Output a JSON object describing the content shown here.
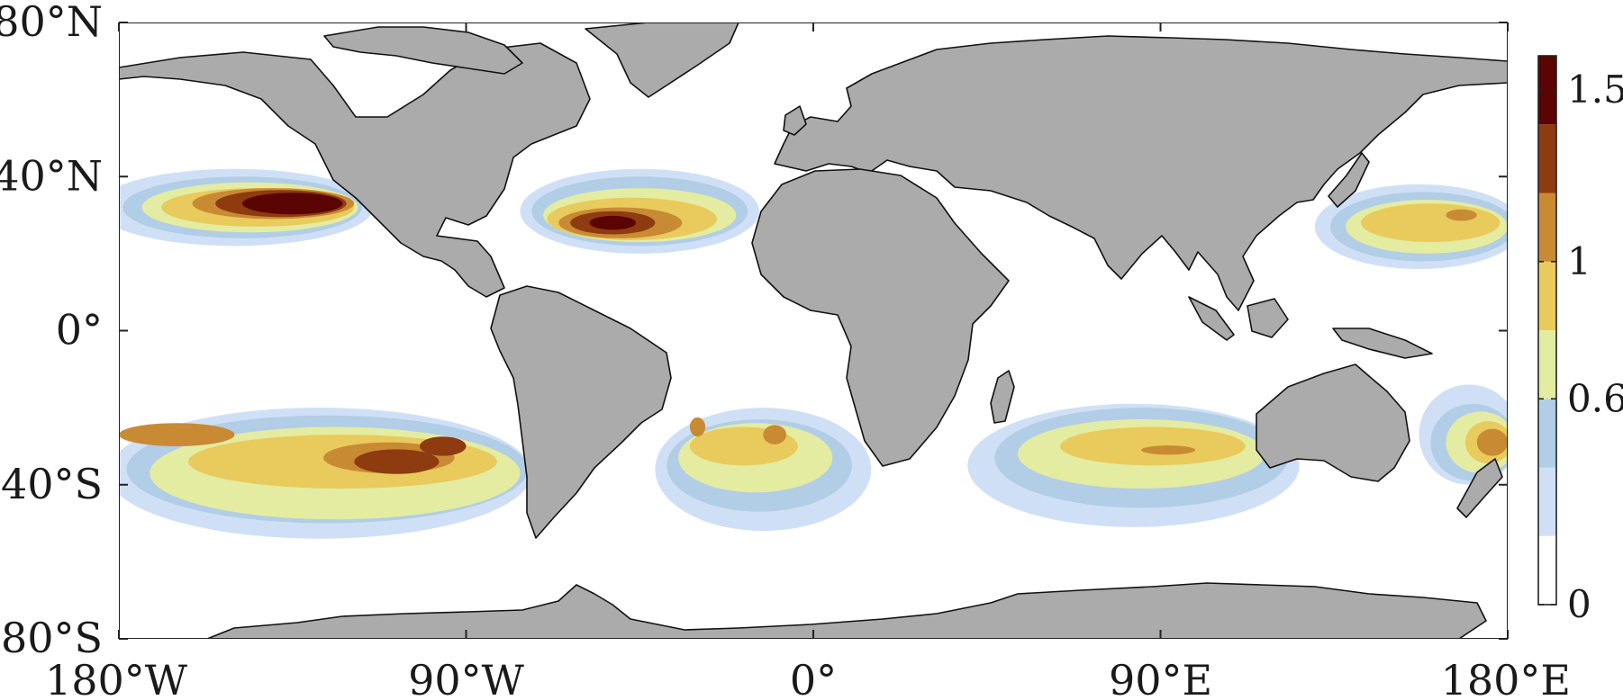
{
  "map": {
    "projection": "equirectangular",
    "lon_range": [
      -180,
      180
    ],
    "lat_range": [
      -80,
      80
    ],
    "land_color": "#ababab",
    "coastline_color": "#111111",
    "x_ticks": [
      {
        "lon": -180,
        "label": "180°W"
      },
      {
        "lon": -90,
        "label": "90°W"
      },
      {
        "lon": 0,
        "label": "0°"
      },
      {
        "lon": 90,
        "label": "90°E"
      },
      {
        "lon": 180,
        "label": "180°E"
      }
    ],
    "y_ticks": [
      {
        "lat": 80,
        "label": "80°N"
      },
      {
        "lat": 40,
        "label": "40°N"
      },
      {
        "lat": 0,
        "label": "0°"
      },
      {
        "lat": -40,
        "label": "40°S"
      },
      {
        "lat": -80,
        "label": "80°S"
      }
    ]
  },
  "colorbar": {
    "range": [
      0,
      1.6
    ],
    "levels": [
      {
        "from": 0.0,
        "to": 0.2,
        "color": "#ffffff"
      },
      {
        "from": 0.2,
        "to": 0.4,
        "color": "#cfe0f6"
      },
      {
        "from": 0.4,
        "to": 0.6,
        "color": "#b2cde6"
      },
      {
        "from": 0.6,
        "to": 0.8,
        "color": "#e4eca1"
      },
      {
        "from": 0.8,
        "to": 1.0,
        "color": "#e8cb5c"
      },
      {
        "from": 1.0,
        "to": 1.2,
        "color": "#c98a34"
      },
      {
        "from": 1.2,
        "to": 1.4,
        "color": "#8e3b10"
      },
      {
        "from": 1.4,
        "to": 1.6,
        "color": "#5a0404"
      }
    ],
    "ticks": [
      {
        "value": 0,
        "label": "0"
      },
      {
        "value": 0.6,
        "label": "0.6"
      },
      {
        "value": 1,
        "label": "1"
      },
      {
        "value": 1.5,
        "label": "1.5"
      }
    ]
  },
  "field_regions": [
    {
      "name": "north-pacific",
      "blobs": [
        {
          "lon": -150,
          "lat": 32,
          "rlon": 36,
          "rlat": 10,
          "level": 0.25
        },
        {
          "lon": -148,
          "lat": 32,
          "rlon": 31,
          "rlat": 8,
          "level": 0.5
        },
        {
          "lon": -146,
          "lat": 32,
          "rlon": 28,
          "rlat": 6.5,
          "level": 0.7
        },
        {
          "lon": -144,
          "lat": 32,
          "rlon": 25,
          "rlat": 5,
          "level": 0.9
        },
        {
          "lon": -140,
          "lat": 33,
          "rlon": 21,
          "rlat": 4,
          "level": 1.1
        },
        {
          "lon": -138,
          "lat": 33,
          "rlon": 17,
          "rlat": 3.5,
          "level": 1.3
        },
        {
          "lon": -135,
          "lat": 33,
          "rlon": 13,
          "rlat": 2.8,
          "level": 1.5
        }
      ]
    },
    {
      "name": "north-atlantic",
      "blobs": [
        {
          "lon": -45,
          "lat": 31,
          "rlon": 31,
          "rlat": 11,
          "level": 0.25
        },
        {
          "lon": -45,
          "lat": 31,
          "rlon": 28,
          "rlat": 9,
          "level": 0.5
        },
        {
          "lon": -45,
          "lat": 30,
          "rlon": 25,
          "rlat": 7,
          "level": 0.7
        },
        {
          "lon": -47,
          "lat": 29,
          "rlon": 22,
          "rlat": 5.5,
          "level": 0.9
        },
        {
          "lon": -50,
          "lat": 28,
          "rlon": 16,
          "rlat": 4,
          "level": 1.1
        },
        {
          "lon": -52,
          "lat": 28,
          "rlon": 11,
          "rlat": 3,
          "level": 1.3
        },
        {
          "lon": -52,
          "lat": 28,
          "rlon": 6,
          "rlat": 1.8,
          "level": 1.5
        }
      ]
    },
    {
      "name": "northwest-pacific",
      "blobs": [
        {
          "lon": 157,
          "lat": 27,
          "rlon": 27,
          "rlat": 11,
          "level": 0.25
        },
        {
          "lon": 158,
          "lat": 27,
          "rlon": 24,
          "rlat": 9,
          "level": 0.5
        },
        {
          "lon": 159,
          "lat": 27,
          "rlon": 21,
          "rlat": 7,
          "level": 0.7
        },
        {
          "lon": 160,
          "lat": 28,
          "rlon": 18,
          "rlat": 5,
          "level": 0.9
        },
        {
          "lon": 168,
          "lat": 30,
          "rlon": 4,
          "rlat": 1.5,
          "level": 1.1
        }
      ]
    },
    {
      "name": "south-pacific",
      "blobs": [
        {
          "lon": -128,
          "lat": -37,
          "rlon": 55,
          "rlat": 17,
          "level": 0.25
        },
        {
          "lon": -126,
          "lat": -36,
          "rlon": 52,
          "rlat": 14,
          "level": 0.5
        },
        {
          "lon": -124,
          "lat": -37,
          "rlon": 48,
          "rlat": 12,
          "level": 0.7
        },
        {
          "lon": -122,
          "lat": -34,
          "rlon": 40,
          "rlat": 7,
          "level": 0.9
        },
        {
          "lon": -165,
          "lat": -27,
          "rlon": 15,
          "rlat": 3,
          "level": 1.1
        },
        {
          "lon": -110,
          "lat": -33,
          "rlon": 17,
          "rlat": 4,
          "level": 1.1
        },
        {
          "lon": -108,
          "lat": -34,
          "rlon": 11,
          "rlat": 3.2,
          "level": 1.3
        },
        {
          "lon": -96,
          "lat": -30,
          "rlon": 6,
          "rlat": 2.5,
          "level": 1.3
        }
      ]
    },
    {
      "name": "south-atlantic",
      "blobs": [
        {
          "lon": -13,
          "lat": -36,
          "rlon": 28,
          "rlat": 16,
          "level": 0.25
        },
        {
          "lon": -14,
          "lat": -35,
          "rlon": 24,
          "rlat": 12,
          "level": 0.5
        },
        {
          "lon": -15,
          "lat": -33,
          "rlon": 20,
          "rlat": 9,
          "level": 0.7
        },
        {
          "lon": -18,
          "lat": -30,
          "rlon": 14,
          "rlat": 5,
          "level": 0.9
        },
        {
          "lon": -10,
          "lat": -27,
          "rlon": 3,
          "rlat": 2.5,
          "level": 1.1
        },
        {
          "lon": -30,
          "lat": -25,
          "rlon": 2,
          "rlat": 2.5,
          "level": 1.1
        }
      ]
    },
    {
      "name": "south-indian",
      "blobs": [
        {
          "lon": 83,
          "lat": -35,
          "rlon": 43,
          "rlat": 16,
          "level": 0.25
        },
        {
          "lon": 85,
          "lat": -33,
          "rlon": 38,
          "rlat": 13,
          "level": 0.5
        },
        {
          "lon": 85,
          "lat": -32,
          "rlon": 32,
          "rlat": 9,
          "level": 0.7
        },
        {
          "lon": 88,
          "lat": -30,
          "rlon": 24,
          "rlat": 5,
          "level": 0.9
        },
        {
          "lon": 92,
          "lat": -31,
          "rlon": 7,
          "rlat": 1.2,
          "level": 1.1
        }
      ]
    },
    {
      "name": "tasman-sea",
      "blobs": [
        {
          "lon": 170,
          "lat": -27,
          "rlon": 13,
          "rlat": 13,
          "level": 0.25
        },
        {
          "lon": 171,
          "lat": -29,
          "rlon": 11,
          "rlat": 10,
          "level": 0.5
        },
        {
          "lon": 173,
          "lat": -29,
          "rlon": 9,
          "rlat": 8,
          "level": 0.7
        },
        {
          "lon": 175,
          "lat": -29,
          "rlon": 6,
          "rlat": 5.5,
          "level": 0.9
        },
        {
          "lon": 176,
          "lat": -29,
          "rlon": 4,
          "rlat": 3.5,
          "level": 1.1
        }
      ]
    }
  ]
}
